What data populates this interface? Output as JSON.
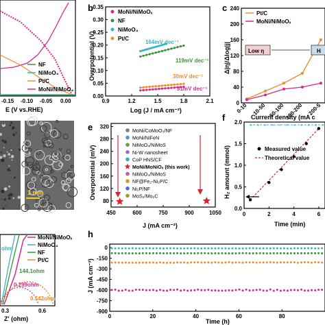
{
  "panel_labels": {
    "b": "b",
    "c": "c",
    "e": "e",
    "f": "f",
    "h": "h"
  },
  "annotations_b": {
    "a": "164mV dec⁻¹",
    "b": "119mV dec⁻¹",
    "c": "30mV dec⁻¹",
    "d": "31mV dec⁻¹"
  },
  "annotations_c": {
    "low": "Low η",
    "high": "H"
  },
  "annotations_img": {
    "scale": "1 mm"
  },
  "annotations_g": {
    "r1": "ohm",
    "r2": "144.1ohm",
    "r3": "0.299ohm",
    "r4": "0.542ohm"
  },
  "annotations_f": {
    "header": "Current density (mA c"
  },
  "colors": {
    "moni": "#d6288a",
    "nf": "#3f8f3a",
    "nimoo4": "#38b3c2",
    "ptc": "#f08a2a",
    "red": "#d8262e"
  },
  "chart_data": [
    {
      "id": "a",
      "type": "line",
      "xlabel": "E (V vs.RHE)",
      "ylabel": "",
      "xticks": [
        "-0.15",
        "-0.10",
        "-0.05",
        "0.00"
      ],
      "legend": [
        "NF",
        "NiMoO₄",
        "Pt/C",
        "MoNi/NiMoO₄"
      ],
      "series": [
        {
          "name": "NF",
          "points": [
            [
              -0.2,
              -10
            ],
            [
              -0.1,
              -3
            ],
            [
              0,
              0
            ]
          ]
        },
        {
          "name": "NiMoO₄",
          "points": [
            [
              -0.2,
              -12
            ],
            [
              -0.1,
              -4
            ],
            [
              0,
              0
            ]
          ]
        },
        {
          "name": "Pt/C",
          "points": [
            [
              -0.2,
              -80
            ],
            [
              -0.1,
              -30
            ],
            [
              -0.05,
              -8
            ],
            [
              0,
              0
            ]
          ]
        },
        {
          "name": "MoNi/NiMoO₄",
          "points": [
            [
              -0.2,
              -180
            ],
            [
              -0.15,
              -120
            ],
            [
              -0.1,
              -60
            ],
            [
              -0.05,
              -15
            ],
            [
              0,
              0
            ]
          ]
        }
      ]
    },
    {
      "id": "b",
      "type": "line",
      "xlabel": "Log (J / mA cm⁻²)",
      "ylabel": "Overpotential (V)",
      "xticks": [
        "0.9",
        "1.2",
        "1.5",
        "1.8",
        "2.1"
      ],
      "yticks": [
        "0.00",
        "0.05",
        "0.10",
        "0.15",
        "0.20",
        "0.25",
        "0.30",
        "0.35"
      ],
      "xlim": [
        0.9,
        2.1
      ],
      "ylim": [
        0,
        0.35
      ],
      "legend": [
        "MoNi/NiMoOₓ",
        "NF",
        "NiMoO₄",
        "Pt/C"
      ],
      "series": [
        {
          "name": "NiMoO₄",
          "points": [
            [
              1.3,
              0.176
            ],
            [
              1.6,
              0.205
            ]
          ]
        },
        {
          "name": "NF",
          "points": [
            [
              1.3,
              0.155
            ],
            [
              1.8,
              0.198
            ]
          ]
        },
        {
          "name": "Pt/C",
          "points": [
            [
              1.3,
              0.033
            ],
            [
              1.8,
              0.048
            ]
          ]
        },
        {
          "name": "MoNi/NiMoOₓ",
          "points": [
            [
              1.3,
              0.022
            ],
            [
              1.8,
              0.036
            ]
          ]
        }
      ]
    },
    {
      "id": "c",
      "type": "line",
      "xlabel": "Current density (mA c",
      "ylabel": "Δ|η|/Δlog|j|",
      "xticks": [
        "0-10",
        "10-50",
        "50-100",
        "100-200",
        "200-5"
      ],
      "yticks": [
        "0",
        "40",
        "80",
        "120",
        "160",
        "200",
        "240"
      ],
      "legend": [
        "Pt/C",
        "MoNi/NiMoOₓ"
      ],
      "series": [
        {
          "name": "Pt/C",
          "values": [
            10,
            30,
            50,
            75,
            160
          ]
        },
        {
          "name": "MoNi/NiMoOₓ",
          "values": [
            8,
            20,
            35,
            40,
            50
          ]
        }
      ]
    },
    {
      "id": "e",
      "type": "scatter",
      "xlabel": "J (mA cm⁻²)",
      "ylabel": "Overpotential (mV)",
      "xticks": [
        "450",
        "600",
        "750",
        "900",
        "1050"
      ],
      "yticks": [
        "80",
        "120",
        "160",
        "200",
        "240",
        "280",
        "320"
      ],
      "xlim": [
        450,
        1050
      ],
      "ylim": [
        60,
        330
      ],
      "legend": [
        "MoNi/CoMoO₃/NF",
        "MoNi/NiFeN",
        "NiMoO₄/NiMoS",
        "Ni-W nanosheet",
        "CoP HNS/CF",
        "MoNi/MoNiOₓ (this work)",
        "NiMoO₄/NiMoS",
        "NF@Fe₂-Ni₂P/C",
        "Ni₂P/NF",
        "MoS₂/Mo₂C"
      ],
      "highlight": [
        [
          500,
          78
        ],
        [
          1000,
          80
        ]
      ]
    },
    {
      "id": "f",
      "type": "scatter",
      "xlabel": "Time (min)",
      "ylabel": "H₂ amount (mmol)",
      "xticks": [
        "0",
        "2",
        "4",
        "6"
      ],
      "yticks": [
        "0.0",
        "0.5",
        "1.0",
        "1.5",
        "2.0"
      ],
      "xlim": [
        0,
        6.5
      ],
      "ylim": [
        0,
        2.0
      ],
      "legend": [
        "Measured value",
        "Theoretical value"
      ],
      "series": [
        {
          "name": "Measured value",
          "points": [
            [
              0.5,
              0.2
            ],
            [
              2,
              0.6
            ],
            [
              3,
              0.9
            ],
            [
              4,
              1.2
            ],
            [
              5,
              1.5
            ],
            [
              6,
              1.85
            ]
          ]
        }
      ],
      "top_series_value": 100
    },
    {
      "id": "g",
      "type": "line",
      "xlabel": "Z' (ohm)",
      "ylabel": "",
      "xticks": [
        "0.3",
        "0.6"
      ],
      "legend": [
        "MoNi/NiMoOₓ",
        "NiMoO₄",
        "NF",
        "Pt/C"
      ]
    },
    {
      "id": "h",
      "type": "line",
      "xlabel": "Time (h)",
      "ylabel": "J (mA cm⁻²)",
      "xticks": [
        "0",
        "20",
        "40",
        "60",
        "80"
      ],
      "yticks": [
        "0",
        "-150",
        "-300",
        "-450",
        "-600",
        "-750",
        "-900"
      ],
      "xlim": [
        0,
        100
      ],
      "ylim": [
        -900,
        50
      ],
      "series": [
        {
          "name": "NiMoO₄",
          "level": -10
        },
        {
          "name": "NF",
          "level": -80
        },
        {
          "name": "Pt/C",
          "level": -210
        },
        {
          "name": "MoNi/NiMoOₓ",
          "level": -600
        }
      ]
    }
  ]
}
